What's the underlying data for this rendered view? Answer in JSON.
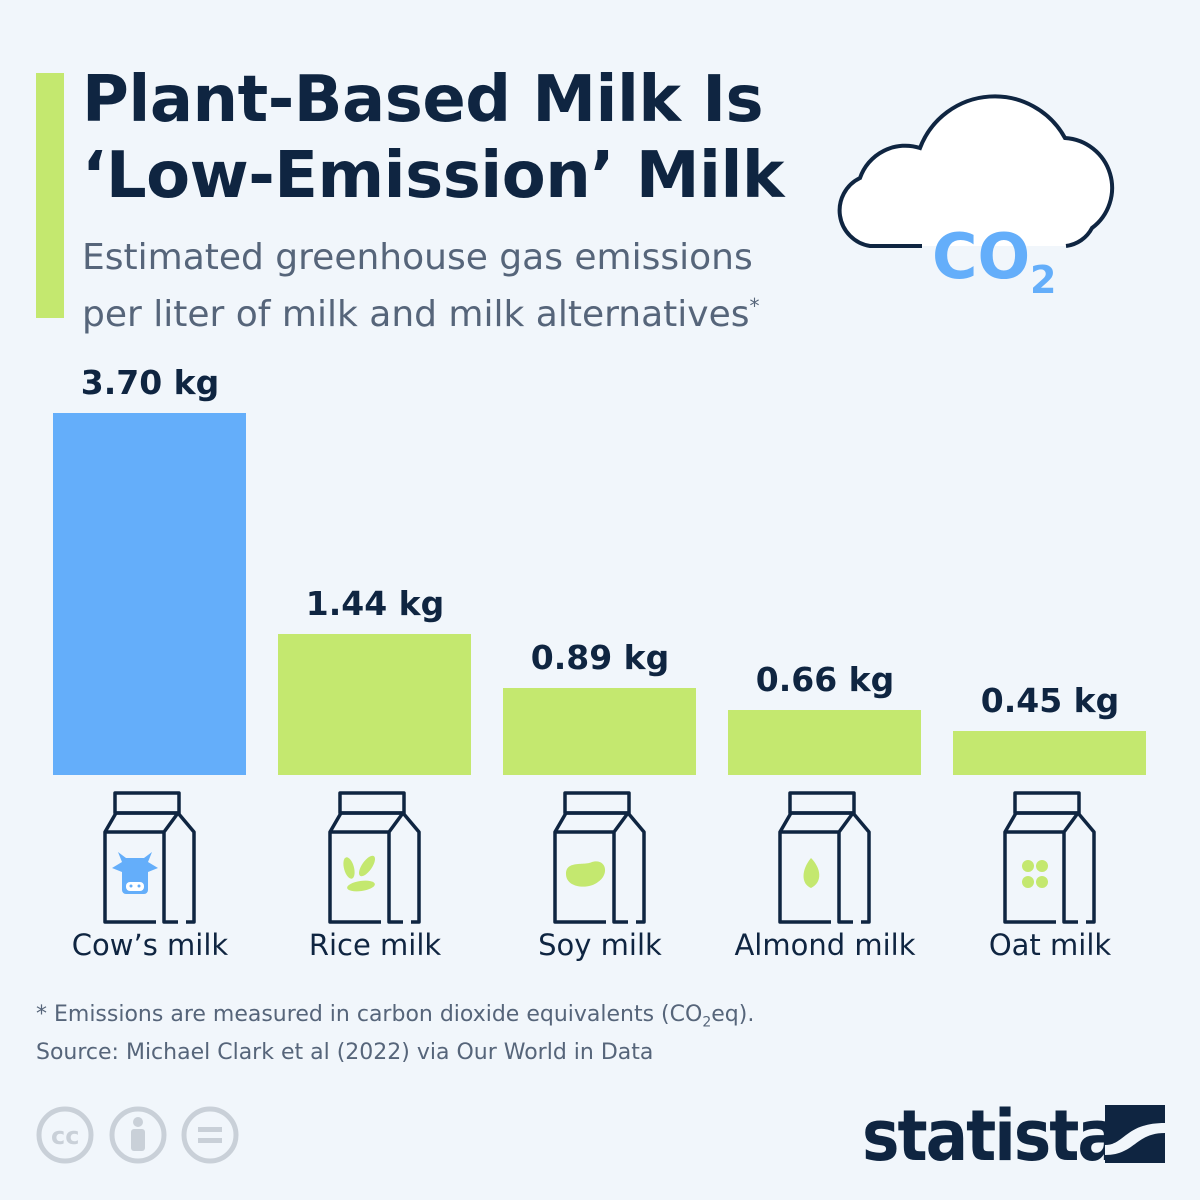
{
  "header": {
    "title_line1": "Plant-Based Milk Is",
    "title_line2": "‘Low-Emission’ Milk",
    "subtitle_line1": "Estimated greenhouse gas emissions",
    "subtitle_line2": "per liter of milk and milk alternatives",
    "subtitle_mark": "*",
    "cloud_text": "CO",
    "cloud_sub": "2"
  },
  "chart_data": {
    "type": "bar",
    "categories": [
      "Cow’s milk",
      "Rice milk",
      "Soy milk",
      "Almond milk",
      "Oat milk"
    ],
    "values": [
      3.7,
      1.44,
      0.89,
      0.66,
      0.45
    ],
    "labels": [
      "3.70 kg",
      "1.44 kg",
      "0.89 kg",
      "0.66 kg",
      "0.45 kg"
    ],
    "unit": "kg",
    "colors": [
      "#64aefa",
      "#c4e86f",
      "#c4e86f",
      "#c4e86f",
      "#c4e86f"
    ],
    "icons": [
      "cow-icon",
      "rice-icon",
      "soybean-icon",
      "almond-icon",
      "oat-icon"
    ],
    "grid": false
  },
  "footer": {
    "note_prefix": "* Emissions are measured in carbon dioxide equivalents (CO",
    "note_sub": "2",
    "note_suffix": "eq).",
    "source": "Source: Michael Clark et al (2022) via Our World in Data",
    "brand": "statista"
  },
  "colors": {
    "navy": "#0f2541",
    "blue": "#64aefa",
    "green": "#c4e86f",
    "background": "#f1f6fb"
  }
}
